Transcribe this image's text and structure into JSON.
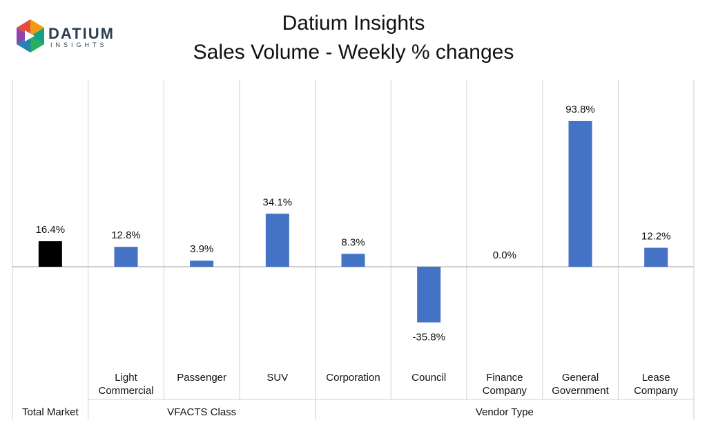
{
  "header": {
    "title": "Datium Insights",
    "subtitle": "Sales Volume - Weekly % changes",
    "logo_word": "DATIUM",
    "logo_sub": "INSIGHTS"
  },
  "colors": {
    "bar": "#4472c4",
    "total_bar": "#000000",
    "grid": "#d0d0d0",
    "axis": "#bfbfbf"
  },
  "chart_data": {
    "type": "bar",
    "title": "Sales Volume - Weekly % changes",
    "categories": [
      [
        "Total Market"
      ],
      [
        "Light",
        "Commercial"
      ],
      [
        "Passenger"
      ],
      [
        "SUV"
      ],
      [
        "Corporation"
      ],
      [
        "Council"
      ],
      [
        "Finance",
        "Company"
      ],
      [
        "General",
        "Government"
      ],
      [
        "Lease",
        "Company"
      ]
    ],
    "values": [
      16.4,
      12.8,
      3.9,
      34.1,
      8.3,
      -35.8,
      0.0,
      93.8,
      12.2
    ],
    "data_labels": [
      "16.4%",
      "12.8%",
      "3.9%",
      "34.1%",
      "8.3%",
      "-35.8%",
      "0.0%",
      "93.8%",
      "12.2%"
    ],
    "groups": [
      {
        "label": "Total Market",
        "from": 0,
        "to": 0,
        "category_label_in_group_row": true
      },
      {
        "label": "VFACTS Class",
        "from": 1,
        "to": 3
      },
      {
        "label": "Vendor Type",
        "from": 4,
        "to": 8
      }
    ],
    "ylim": [
      -118,
      118
    ],
    "grid": false,
    "legend": "none"
  }
}
